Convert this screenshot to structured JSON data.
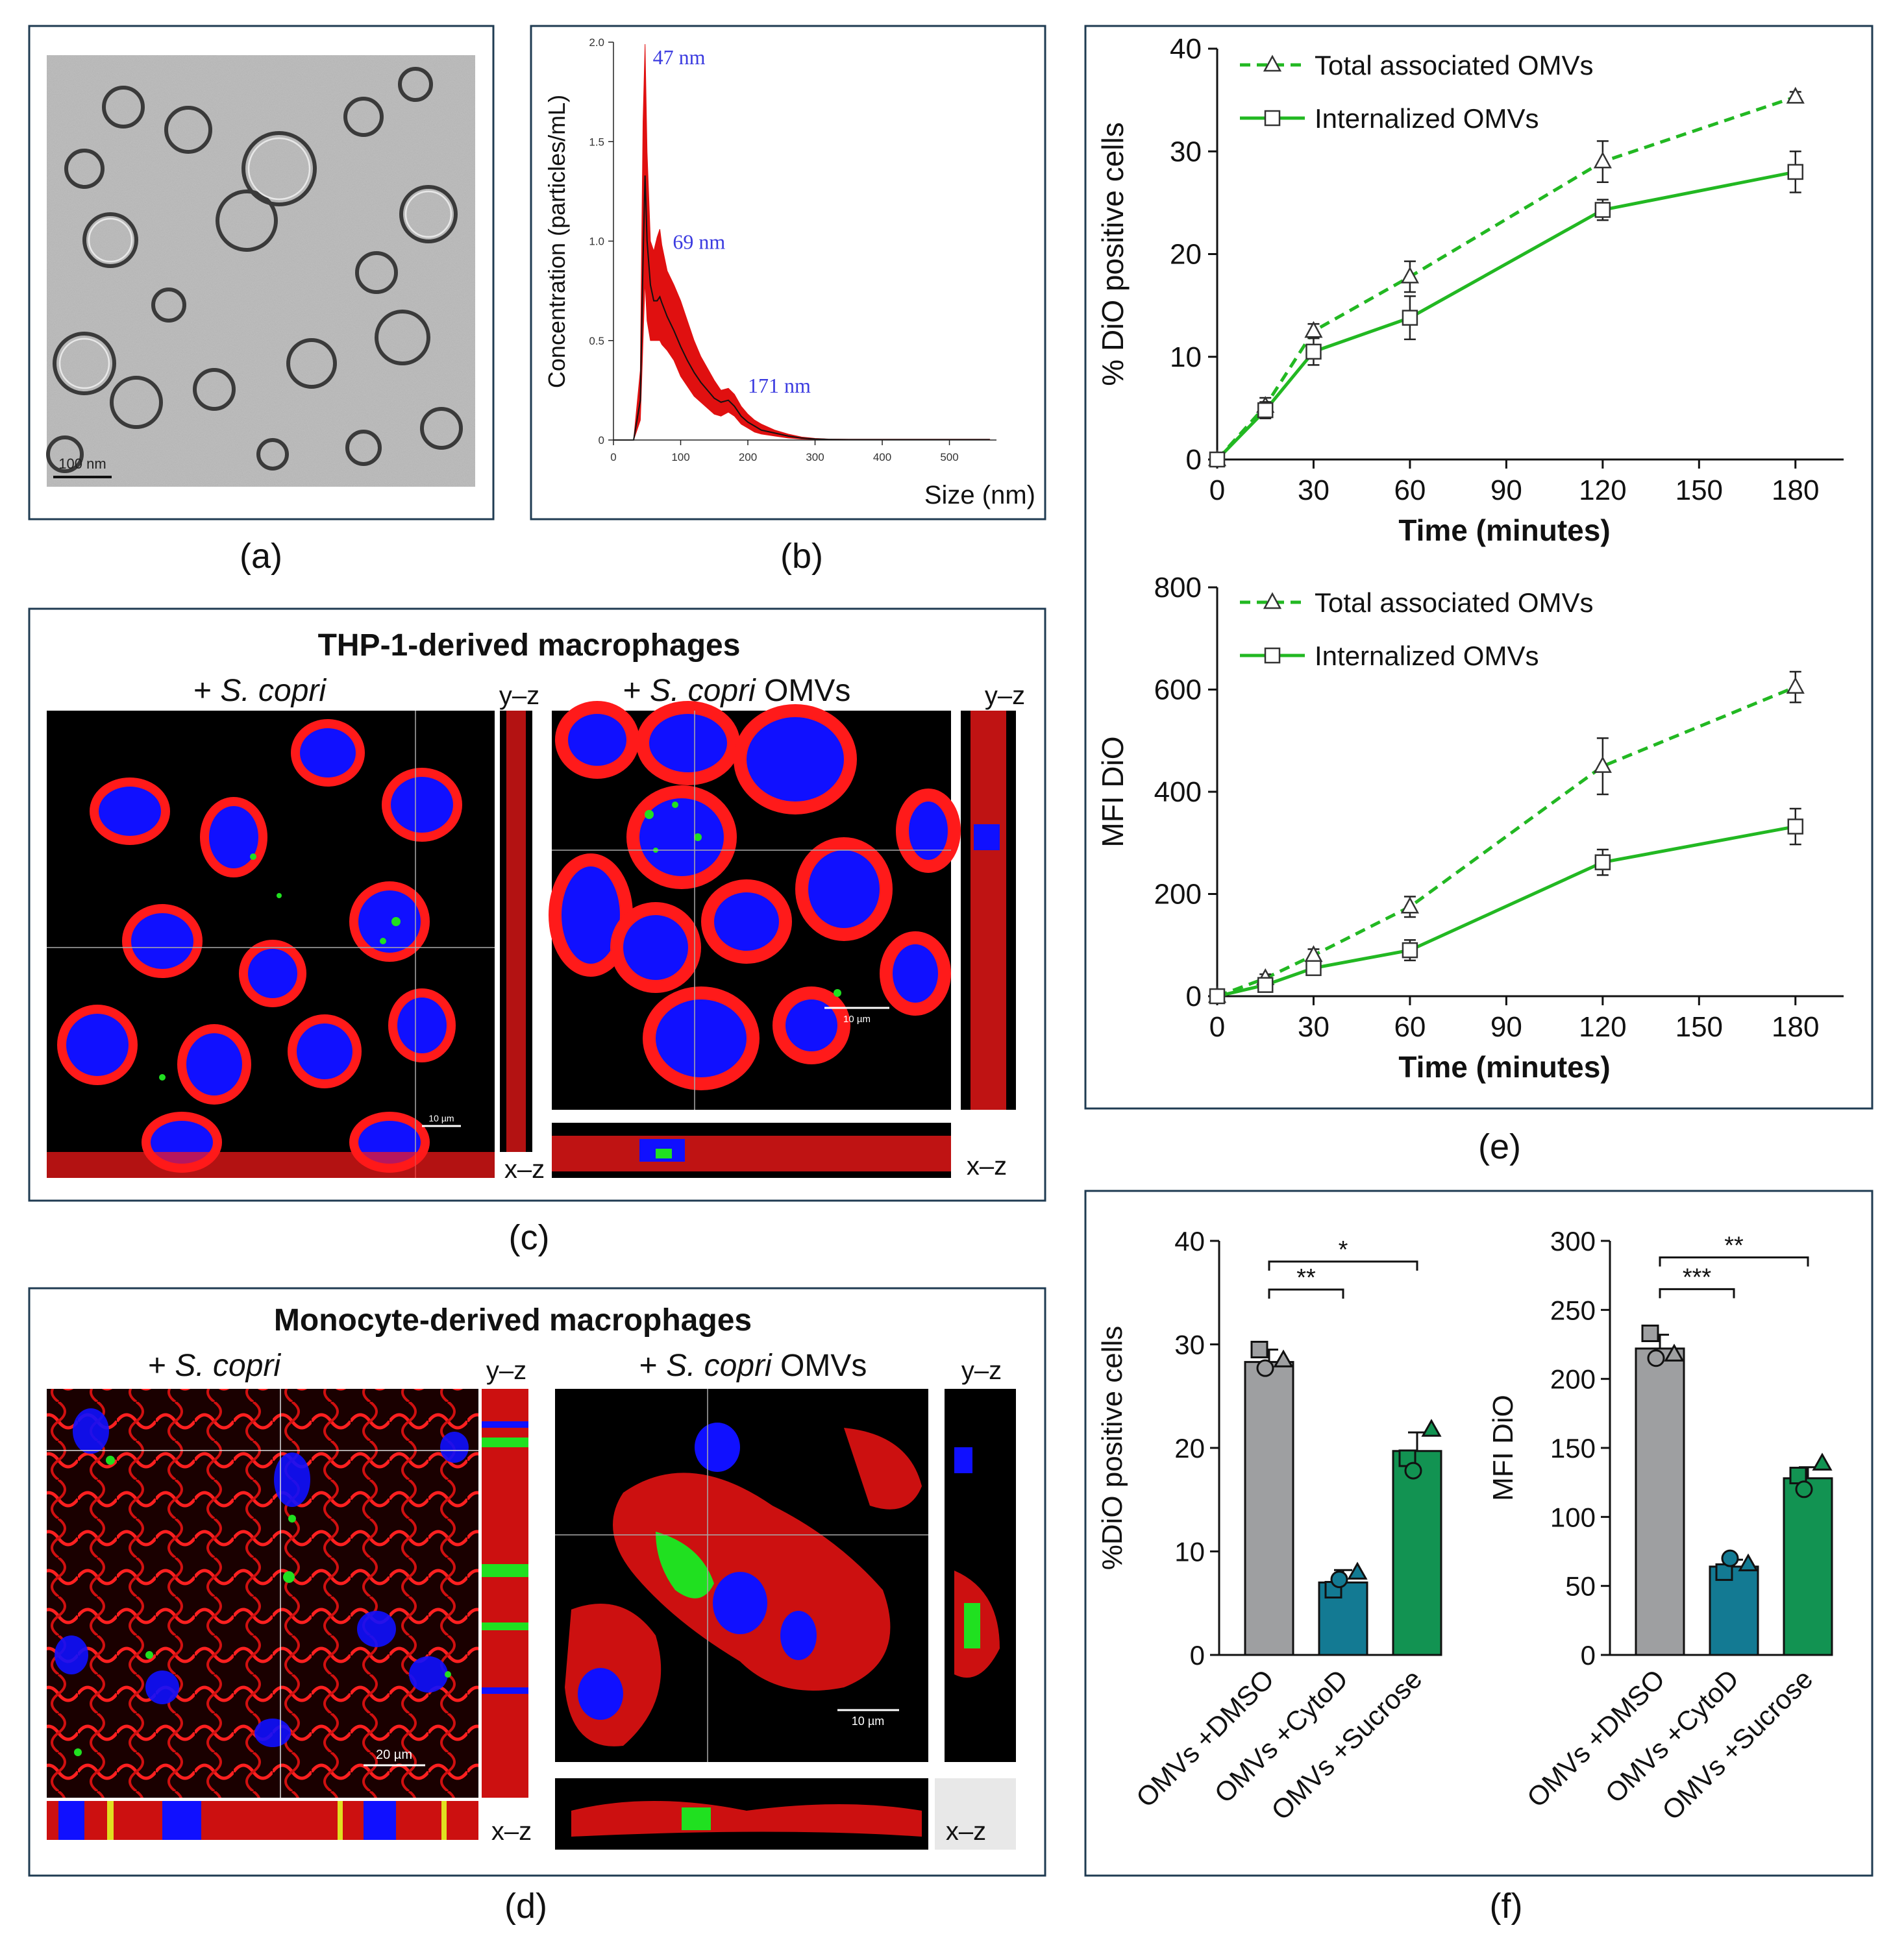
{
  "colors": {
    "green": "#22B822",
    "grey_bar": "#9E9FA1",
    "teal_bar": "#137A93",
    "green_bar": "#129352",
    "frame": "#1F3B52",
    "label_blue": "#3B3BE0",
    "red": "#E01010",
    "black": "#111111"
  },
  "panels": {
    "a": {
      "label": "(a)",
      "scale_bar": "100 nm"
    },
    "b": {
      "label": "(b)"
    },
    "c": {
      "label": "(c)",
      "title": "THP-1-derived macrophages",
      "left": {
        "prefix": "+ ",
        "species": "S. copri",
        "suffix": ""
      },
      "right": {
        "prefix": "+ ",
        "species": "S. copri",
        "suffix": " OMVs"
      },
      "yz": "y–z",
      "xz": "x–z",
      "scale_left": "10 µm",
      "scale_right": "10 µm"
    },
    "d": {
      "label": "(d)",
      "title": "Monocyte-derived macrophages",
      "left": {
        "prefix": "+ ",
        "species": "S. copri",
        "suffix": ""
      },
      "right": {
        "prefix": "+ ",
        "species": "S. copri",
        "suffix": " OMVs"
      },
      "yz": "y–z",
      "xz": "x–z",
      "scale_left": "20 µm",
      "scale_right": "10 µm"
    },
    "e": {
      "label": "(e)"
    },
    "f": {
      "label": "(f)"
    }
  },
  "chart_data": [
    {
      "id": "b",
      "type": "line",
      "ylabel": "Concentration (particles/mL)",
      "xlabel": "Size (nm)",
      "xlim": [
        0,
        570
      ],
      "ylim": [
        0,
        2.0
      ],
      "xticks": [
        0,
        100,
        200,
        300,
        400,
        500
      ],
      "yticks": [
        "0",
        "0.5",
        "1.0",
        "1.5",
        "2.0"
      ],
      "ytick_values": [
        0,
        0.5,
        1.0,
        1.5,
        2.0
      ],
      "annotations": [
        {
          "text": "47 nm",
          "x": 47,
          "y": 1.98
        },
        {
          "text": "69 nm",
          "x": 69,
          "y": 0.98
        },
        {
          "text": "171 nm",
          "x": 171,
          "y": 0.27
        }
      ],
      "series": [
        {
          "name": "mean",
          "x": [
            0,
            30,
            40,
            44,
            47,
            50,
            55,
            60,
            65,
            69,
            72,
            80,
            90,
            100,
            110,
            120,
            130,
            140,
            150,
            160,
            171,
            180,
            190,
            200,
            210,
            220,
            240,
            260,
            280,
            300,
            320,
            350,
            400,
            450,
            500,
            560
          ],
          "y": [
            0,
            0,
            0.2,
            0.9,
            1.33,
            1.0,
            0.78,
            0.7,
            0.7,
            0.72,
            0.69,
            0.62,
            0.55,
            0.47,
            0.4,
            0.34,
            0.29,
            0.25,
            0.21,
            0.19,
            0.2,
            0.17,
            0.12,
            0.09,
            0.07,
            0.05,
            0.035,
            0.02,
            0.01,
            0.005,
            0.003,
            0.002,
            0.002,
            0.002,
            0.002,
            0.002
          ]
        },
        {
          "name": "upper",
          "x": [
            0,
            30,
            40,
            44,
            47,
            50,
            55,
            60,
            65,
            69,
            72,
            80,
            90,
            100,
            110,
            120,
            130,
            140,
            150,
            160,
            171,
            180,
            190,
            200,
            210,
            220,
            240,
            260,
            280,
            300,
            320,
            350,
            400,
            450,
            500,
            560
          ],
          "y": [
            0,
            0,
            0.35,
            1.6,
            1.99,
            1.45,
            1.0,
            0.95,
            1.02,
            1.06,
            0.98,
            0.85,
            0.78,
            0.7,
            0.6,
            0.5,
            0.42,
            0.36,
            0.3,
            0.25,
            0.26,
            0.23,
            0.17,
            0.13,
            0.1,
            0.08,
            0.05,
            0.03,
            0.015,
            0.008,
            0.005,
            0.004,
            0.004,
            0.004,
            0.004,
            0.004
          ]
        },
        {
          "name": "lower",
          "x": [
            0,
            30,
            40,
            44,
            47,
            50,
            55,
            60,
            65,
            69,
            72,
            80,
            90,
            100,
            110,
            120,
            130,
            140,
            150,
            160,
            171,
            180,
            190,
            200,
            210,
            220,
            240,
            260,
            280,
            300,
            320,
            350,
            400,
            450,
            500,
            560
          ],
          "y": [
            0,
            0,
            0.1,
            0.5,
            0.8,
            0.6,
            0.5,
            0.5,
            0.5,
            0.5,
            0.48,
            0.45,
            0.4,
            0.32,
            0.27,
            0.22,
            0.19,
            0.16,
            0.13,
            0.12,
            0.14,
            0.12,
            0.08,
            0.06,
            0.04,
            0.03,
            0.02,
            0.01,
            0.005,
            0.002,
            0.001,
            0.001,
            0.001,
            0.001,
            0.001,
            0.001
          ]
        }
      ]
    },
    {
      "id": "e1",
      "type": "line",
      "ylabel": "% DiO positive cells",
      "xlabel": "Time (minutes)",
      "xlim": [
        0,
        195
      ],
      "ylim": [
        0,
        40
      ],
      "xticks": [
        0,
        30,
        60,
        90,
        120,
        150,
        180
      ],
      "yticks": [
        0,
        10,
        20,
        30,
        40
      ],
      "series": [
        {
          "name": "Total associated OMVs",
          "style": "dashed",
          "marker": "triangle",
          "x": [
            0,
            15,
            30,
            60,
            120,
            180
          ],
          "y": [
            0,
            5.2,
            12.5,
            17.8,
            29,
            35.3
          ],
          "err": [
            0.3,
            0.8,
            0.7,
            1.5,
            2.0,
            0.5
          ]
        },
        {
          "name": "Internalized OMVs",
          "style": "solid",
          "marker": "square",
          "x": [
            0,
            15,
            30,
            60,
            120,
            180
          ],
          "y": [
            0,
            4.8,
            10.5,
            13.8,
            24.3,
            28
          ],
          "err": [
            0.3,
            0.8,
            1.3,
            2.1,
            1.0,
            2.0
          ]
        }
      ]
    },
    {
      "id": "e2",
      "type": "line",
      "ylabel": "MFI DiO",
      "xlabel": "Time (minutes)",
      "xlim": [
        0,
        195
      ],
      "ylim": [
        0,
        800
      ],
      "xticks": [
        0,
        30,
        60,
        90,
        120,
        150,
        180
      ],
      "yticks": [
        0,
        200,
        400,
        600,
        800
      ],
      "series": [
        {
          "name": "Total associated OMVs",
          "style": "dashed",
          "marker": "triangle",
          "x": [
            0,
            15,
            30,
            60,
            120,
            180
          ],
          "y": [
            0,
            35,
            80,
            175,
            450,
            605
          ],
          "err": [
            5,
            8,
            12,
            20,
            55,
            30
          ]
        },
        {
          "name": "Internalized OMVs",
          "style": "solid",
          "marker": "square",
          "x": [
            0,
            15,
            30,
            60,
            120,
            180
          ],
          "y": [
            0,
            22,
            55,
            90,
            262,
            332
          ],
          "err": [
            5,
            8,
            12,
            20,
            25,
            35
          ]
        }
      ]
    },
    {
      "id": "f1",
      "type": "bar",
      "ylabel": "%DiO positive cells",
      "categories": [
        "OMVs +DMSO",
        "OMVs +CytoD",
        "OMVs +Sucrose"
      ],
      "values": [
        28.3,
        7.0,
        19.7
      ],
      "err": [
        1.2,
        1.2,
        1.8
      ],
      "points": [
        [
          29.5,
          27.7,
          28.5
        ],
        [
          6.3,
          7.3,
          8.0
        ],
        [
          19.0,
          17.8,
          21.8
        ]
      ],
      "ylim": [
        0,
        40
      ],
      "yticks": [
        0,
        10,
        20,
        30,
        40
      ],
      "significance": [
        {
          "from": 0,
          "to": 1,
          "label": "**",
          "level": 35.3
        },
        {
          "from": 0,
          "to": 2,
          "label": "*",
          "level": 38.0
        }
      ]
    },
    {
      "id": "f2",
      "type": "bar",
      "ylabel": "MFI DiO",
      "categories": [
        "OMVs +DMSO",
        "OMVs +CytoD",
        "OMVs +Sucrose"
      ],
      "values": [
        222,
        64,
        128
      ],
      "err": [
        10,
        5,
        8
      ],
      "points": [
        [
          233,
          215,
          218
        ],
        [
          60,
          70,
          66
        ],
        [
          130,
          120,
          139
        ]
      ],
      "ylim": [
        0,
        300
      ],
      "yticks": [
        0,
        50,
        100,
        150,
        200,
        250,
        300
      ],
      "significance": [
        {
          "from": 0,
          "to": 1,
          "label": "***",
          "level": 265
        },
        {
          "from": 0,
          "to": 2,
          "label": "**",
          "level": 288
        }
      ]
    }
  ]
}
